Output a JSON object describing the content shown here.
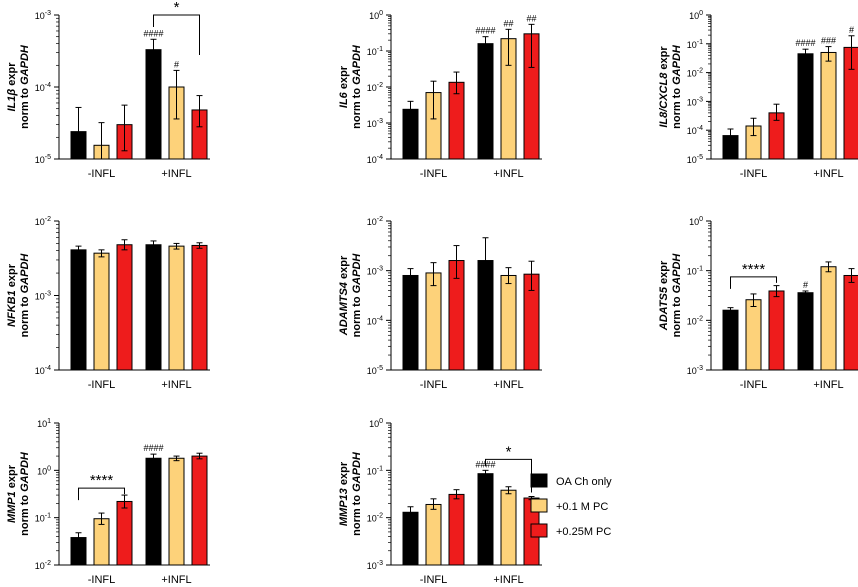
{
  "colors": {
    "OA Ch only": "#000000",
    "+0.1 M PC": "#fdd27a",
    "+0.25M PC": "#ee1c1c"
  },
  "legend": [
    "OA Ch only",
    "+0.1 M PC",
    "+0.25M PC"
  ],
  "chart_data": [
    {
      "type": "bar",
      "log_y": true,
      "gene": "IL1β",
      "ylabel_suffix": "expr",
      "ylabel_line2_prefix": "norm to",
      "ylabel_line2_gene": "GAPDH",
      "ylim": [
        1e-05,
        0.001
      ],
      "ytick_labels": [
        [
          "10",
          "-5"
        ],
        [
          "10",
          "-4"
        ],
        [
          "10",
          "-3"
        ]
      ],
      "categories": [
        "-INFL",
        "+INFL"
      ],
      "series": [
        {
          "name": "OA Ch only",
          "values": [
            2.4e-05,
            0.00033
          ],
          "err_hi": [
            5.2e-05,
            0.00046
          ],
          "err_lo": [
            1e-05,
            0.0002
          ],
          "annotations": [
            "",
            "####"
          ]
        },
        {
          "name": "+0.1 M PC",
          "values": [
            1.55e-05,
            0.0001
          ],
          "err_hi": [
            3.2e-05,
            0.00017
          ],
          "err_lo": [
            1e-05,
            3.6e-05
          ],
          "annotations": [
            "",
            "#"
          ]
        },
        {
          "name": "+0.25M PC",
          "values": [
            3e-05,
            4.8e-05
          ],
          "err_hi": [
            5.6e-05,
            7.6e-05
          ],
          "err_lo": [
            1.3e-05,
            2.8e-05
          ],
          "annotations": [
            "",
            ""
          ]
        }
      ],
      "brackets": [
        {
          "from_group": 1,
          "from_series": 0,
          "to_group": 1,
          "to_series": 2,
          "label": "*",
          "y": 0.001
        }
      ]
    },
    {
      "type": "bar",
      "log_y": true,
      "gene": "IL6",
      "ylabel_suffix": "expr",
      "ylabel_line2_prefix": "norm to",
      "ylabel_line2_gene": "GAPDH",
      "ylim": [
        0.0001,
        1
      ],
      "ytick_labels": [
        [
          "10",
          "-4"
        ],
        [
          "10",
          "-3"
        ],
        [
          "10",
          "-2"
        ],
        [
          "10",
          "-1"
        ],
        [
          "10",
          "0"
        ]
      ],
      "categories": [
        "-INFL",
        "+INFL"
      ],
      "series": [
        {
          "name": "OA Ch only",
          "values": [
            0.0024,
            0.16
          ],
          "err_hi": [
            0.004,
            0.25
          ],
          "err_lo": [
            0.0015,
            0.09
          ],
          "annotations": [
            "",
            "####"
          ]
        },
        {
          "name": "+0.1 M PC",
          "values": [
            0.007,
            0.22
          ],
          "err_hi": [
            0.0145,
            0.4
          ],
          "err_lo": [
            0.0013,
            0.04
          ],
          "annotations": [
            "",
            "##"
          ]
        },
        {
          "name": "+0.25M PC",
          "values": [
            0.0135,
            0.3
          ],
          "err_hi": [
            0.026,
            0.55
          ],
          "err_lo": [
            0.0065,
            0.035
          ],
          "annotations": [
            "",
            "##"
          ]
        }
      ],
      "brackets": []
    },
    {
      "type": "bar",
      "log_y": true,
      "gene": "IL8/CXCL8",
      "ylabel_suffix": "expr",
      "ylabel_line2_prefix": "norm to",
      "ylabel_line2_gene": "GAPDH",
      "ylim": [
        1e-05,
        1
      ],
      "ytick_labels": [
        [
          "10",
          "-5"
        ],
        [
          "10",
          "-4"
        ],
        [
          "10",
          "-3"
        ],
        [
          "10",
          "-2"
        ],
        [
          "10",
          "-1"
        ],
        [
          "10",
          "0"
        ]
      ],
      "categories": [
        "-INFL",
        "+INFL"
      ],
      "series": [
        {
          "name": "OA Ch only",
          "values": [
            6.5e-05,
            0.045
          ],
          "err_hi": [
            0.00011,
            0.065
          ],
          "err_lo": [
            3.6e-05,
            0.032
          ],
          "annotations": [
            "",
            "####"
          ]
        },
        {
          "name": "+0.1 M PC",
          "values": [
            0.00014,
            0.05
          ],
          "err_hi": [
            0.00026,
            0.08
          ],
          "err_lo": [
            6.5e-05,
            0.025
          ],
          "annotations": [
            "",
            "###"
          ]
        },
        {
          "name": "+0.25M PC",
          "values": [
            0.0004,
            0.075
          ],
          "err_hi": [
            0.0008,
            0.19
          ],
          "err_lo": [
            0.00022,
            0.013
          ],
          "annotations": [
            "",
            "#"
          ]
        }
      ],
      "brackets": []
    },
    {
      "type": "bar",
      "log_y": true,
      "gene": "NFKB1",
      "ylabel_suffix": "expr",
      "ylabel_line2_prefix": "norm to",
      "ylabel_line2_gene": "GAPDH",
      "ylim": [
        0.0001,
        0.01
      ],
      "ytick_labels": [
        [
          "10",
          "-4"
        ],
        [
          "10",
          "-3"
        ],
        [
          "10",
          "-2"
        ]
      ],
      "categories": [
        "-INFL",
        "+INFL"
      ],
      "series": [
        {
          "name": "OA Ch only",
          "values": [
            0.0041,
            0.0048
          ],
          "err_hi": [
            0.0046,
            0.0054
          ],
          "err_lo": [
            0.0037,
            0.0043
          ],
          "annotations": [
            "",
            ""
          ]
        },
        {
          "name": "+0.1 M PC",
          "values": [
            0.0037,
            0.0046
          ],
          "err_hi": [
            0.0041,
            0.005
          ],
          "err_lo": [
            0.0033,
            0.0042
          ],
          "annotations": [
            "",
            ""
          ]
        },
        {
          "name": "+0.25M PC",
          "values": [
            0.0048,
            0.0047
          ],
          "err_hi": [
            0.0056,
            0.0051
          ],
          "err_lo": [
            0.0041,
            0.0043
          ],
          "annotations": [
            "",
            ""
          ]
        }
      ],
      "brackets": []
    },
    {
      "type": "bar",
      "log_y": true,
      "gene": "ADAMTS4",
      "ylabel_suffix": "expr",
      "ylabel_line2_prefix": "norm to",
      "ylabel_line2_gene": "GAPDH",
      "ylim": [
        1e-05,
        0.01
      ],
      "ytick_labels": [
        [
          "10",
          "-5"
        ],
        [
          "10",
          "-4"
        ],
        [
          "10",
          "-3"
        ],
        [
          "10",
          "-2"
        ]
      ],
      "categories": [
        "-INFL",
        "+INFL"
      ],
      "series": [
        {
          "name": "OA Ch only",
          "values": [
            0.0008,
            0.0016
          ],
          "err_hi": [
            0.0011,
            0.0046
          ],
          "err_lo": [
            0.0006,
            0.0006
          ],
          "annotations": [
            "",
            ""
          ]
        },
        {
          "name": "+0.1 M PC",
          "values": [
            0.0009,
            0.0008
          ],
          "err_hi": [
            0.00145,
            0.00115
          ],
          "err_lo": [
            0.0005,
            0.00055
          ],
          "annotations": [
            "",
            ""
          ]
        },
        {
          "name": "+0.25M PC",
          "values": [
            0.0016,
            0.00085
          ],
          "err_hi": [
            0.0032,
            0.00155
          ],
          "err_lo": [
            0.0007,
            0.0004
          ],
          "annotations": [
            "",
            ""
          ]
        }
      ],
      "brackets": []
    },
    {
      "type": "bar",
      "log_y": true,
      "gene": "ADATS5",
      "ylabel_suffix": "expr",
      "ylabel_line2_prefix": "norm to",
      "ylabel_line2_gene": "GAPDH",
      "ylim": [
        0.001,
        1
      ],
      "ytick_labels": [
        [
          "10",
          "-3"
        ],
        [
          "10",
          "-2"
        ],
        [
          "10",
          "-1"
        ],
        [
          "10",
          "0"
        ]
      ],
      "categories": [
        "-INFL",
        "+INFL"
      ],
      "series": [
        {
          "name": "OA Ch only",
          "values": [
            0.016,
            0.036
          ],
          "err_hi": [
            0.018,
            0.039
          ],
          "err_lo": [
            0.014,
            0.033
          ],
          "annotations": [
            "",
            "#"
          ]
        },
        {
          "name": "+0.1 M PC",
          "values": [
            0.026,
            0.12
          ],
          "err_hi": [
            0.034,
            0.15
          ],
          "err_lo": [
            0.019,
            0.095
          ],
          "annotations": [
            "",
            ""
          ]
        },
        {
          "name": "+0.25M PC",
          "values": [
            0.039,
            0.08
          ],
          "err_hi": [
            0.05,
            0.11
          ],
          "err_lo": [
            0.03,
            0.058
          ],
          "annotations": [
            "",
            ""
          ]
        }
      ],
      "brackets": [
        {
          "from_group": 0,
          "from_series": 0,
          "to_group": 0,
          "to_series": 2,
          "label": "****",
          "y": 0.075
        }
      ]
    },
    {
      "type": "bar",
      "log_y": true,
      "gene": "MMP1",
      "ylabel_suffix": "expr",
      "ylabel_line2_prefix": "norm to",
      "ylabel_line2_gene": "GAPDH",
      "ylim": [
        0.01,
        10
      ],
      "ytick_labels": [
        [
          "10",
          "-2"
        ],
        [
          "10",
          "-1"
        ],
        [
          "10",
          "0"
        ],
        [
          "10",
          "1"
        ]
      ],
      "categories": [
        "-INFL",
        "+INFL"
      ],
      "series": [
        {
          "name": "OA Ch only",
          "values": [
            0.038,
            1.8
          ],
          "err_hi": [
            0.048,
            2.2
          ],
          "err_lo": [
            0.03,
            1.5
          ],
          "annotations": [
            "",
            "####"
          ]
        },
        {
          "name": "+0.1 M PC",
          "values": [
            0.095,
            1.8
          ],
          "err_hi": [
            0.125,
            2.0
          ],
          "err_lo": [
            0.072,
            1.6
          ],
          "annotations": [
            "",
            ""
          ]
        },
        {
          "name": "+0.25M PC",
          "values": [
            0.22,
            2.0
          ],
          "err_hi": [
            0.3,
            2.3
          ],
          "err_lo": [
            0.16,
            1.75
          ],
          "annotations": [
            "",
            ""
          ]
        }
      ],
      "brackets": [
        {
          "from_group": 0,
          "from_series": 0,
          "to_group": 0,
          "to_series": 2,
          "label": "****",
          "y": 0.42
        }
      ]
    },
    {
      "type": "bar",
      "log_y": true,
      "gene": "MMP13",
      "ylabel_suffix": "expr",
      "ylabel_line2_prefix": "norm to",
      "ylabel_line2_gene": "GAPDH",
      "ylim": [
        0.001,
        1
      ],
      "ytick_labels": [
        [
          "10",
          "-3"
        ],
        [
          "10",
          "-2"
        ],
        [
          "10",
          "-1"
        ],
        [
          "10",
          "0"
        ]
      ],
      "categories": [
        "-INFL",
        "+INFL"
      ],
      "series": [
        {
          "name": "OA Ch only",
          "values": [
            0.013,
            0.085
          ],
          "err_hi": [
            0.017,
            0.1
          ],
          "err_lo": [
            0.0105,
            0.07
          ],
          "annotations": [
            "",
            "####"
          ]
        },
        {
          "name": "+0.1 M PC",
          "values": [
            0.019,
            0.038
          ],
          "err_hi": [
            0.025,
            0.045
          ],
          "err_lo": [
            0.015,
            0.032
          ],
          "annotations": [
            "",
            ""
          ]
        },
        {
          "name": "+0.25M PC",
          "values": [
            0.031,
            0.026
          ],
          "err_hi": [
            0.039,
            0.028
          ],
          "err_lo": [
            0.025,
            0.024
          ],
          "annotations": [
            "",
            ""
          ]
        }
      ],
      "brackets": [
        {
          "from_group": 1,
          "from_series": 0,
          "to_group": 1,
          "to_series": 2,
          "label": "*",
          "y": 0.17
        }
      ]
    }
  ]
}
